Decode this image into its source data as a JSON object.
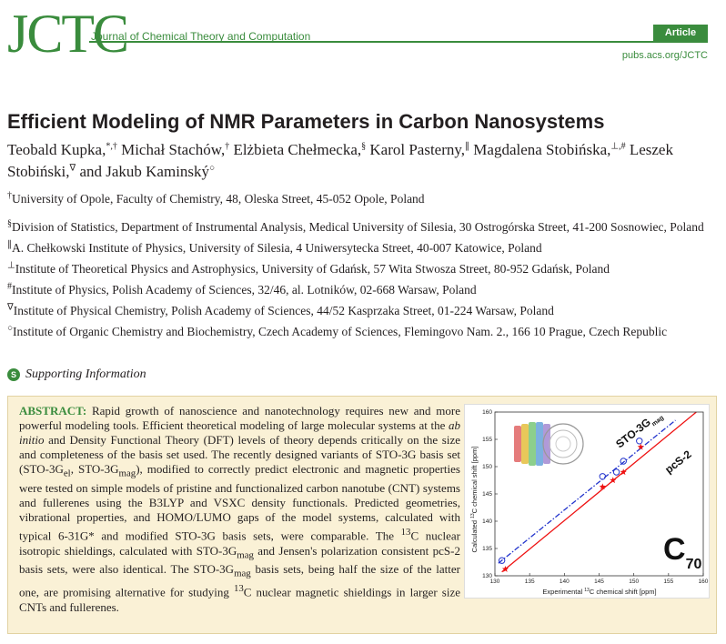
{
  "header": {
    "logo": "JCTC",
    "journal_name": "Journal of Chemical Theory and Computation",
    "badge": "Article",
    "url": "pubs.acs.org/JCTC"
  },
  "title": "Efficient Modeling of NMR Parameters in Carbon Nanosystems",
  "authors": [
    {
      "name": "Teobald Kupka,",
      "marks": "*,†"
    },
    {
      "name": "Michał Stachów,",
      "marks": "†"
    },
    {
      "name": "Elżbieta Chełmecka,",
      "marks": "§"
    },
    {
      "name": "Karol Pasterny,",
      "marks": "∥"
    },
    {
      "name": "Magdalena Stobińska,",
      "marks": "⊥,#"
    },
    {
      "name": "Leszek Stobiński,",
      "marks": "∇"
    },
    {
      "name": "and Jakub Kaminský",
      "marks": "○"
    }
  ],
  "affiliations": [
    {
      "mark": "†",
      "text": "University of Opole, Faculty of Chemistry, 48, Oleska Street, 45-052 Opole, Poland"
    },
    {
      "mark": "§",
      "text": "Division of Statistics, Department of Instrumental Analysis, Medical University of Silesia, 30 Ostrogórska Street, 41-200 Sosnowiec, Poland"
    },
    {
      "mark": "∥",
      "text": "A. Chełkowski Institute of Physics, University of Silesia, 4 Uniwersytecka Street, 40-007 Katowice, Poland"
    },
    {
      "mark": "⊥",
      "text": "Institute of Theoretical Physics and Astrophysics, University of Gdańsk, 57 Wita Stwosza Street, 80-952 Gdańsk, Poland"
    },
    {
      "mark": "#",
      "text": "Institute of Physics, Polish Academy of Sciences, 32/46, al. Lotników, 02-668 Warsaw, Poland"
    },
    {
      "mark": "∇",
      "text": "Institute of Physical Chemistry, Polish Academy of Sciences, 44/52 Kasprzaka Street, 01-224 Warsaw, Poland"
    },
    {
      "mark": "○",
      "text": "Institute of Organic Chemistry and Biochemistry, Czech Academy of Sciences, Flemingovo Nam. 2., 166 10 Prague, Czech Republic"
    }
  ],
  "supporting": {
    "icon": "S",
    "text": "Supporting Information"
  },
  "abstract": {
    "label": "ABSTRACT:",
    "p1": " Rapid growth of nanoscience and nanotechnology requires new and more powerful modeling tools. Efficient theoretical modeling of large molecular systems at the ",
    "italic": "ab initio",
    "p2": " and Density Functional Theory (DFT) levels of theory depends critically on the size and completeness of the basis set used. The recently designed variants of STO-3G basis set (STO-3G",
    "sub_el": "el",
    "p3": ", STO-3G",
    "sub_mag1": "mag",
    "p4": "), modified to correctly predict electronic and magnetic properties were tested on simple models of pristine and functionalized carbon nanotube (CNT) systems and fullerenes using the B3LYP and VSXC density functionals. Predicted geometries, vibrational properties, and HOMO/LUMO gaps of the model systems, calculated with typical 6-31G* and modified STO-3G basis sets, were comparable. The ",
    "sup_13_1": "13",
    "p5": "C nuclear isotropic shieldings, calculated with STO-3G",
    "sub_mag2": "mag",
    "p6": " and Jensen's polarization consistent pcS-2 basis sets, were also identical. The STO-3G",
    "sub_mag3": "mag",
    "p7": " basis sets, being half the size of the latter one, are promising alternative for studying ",
    "sup_13_2": "13",
    "p8": "C nuclear magnetic shieldings in larger size CNTs and fullerenes."
  },
  "chart_data": {
    "type": "scatter",
    "xlabel_pre": "Experimental ",
    "xlabel_sup": "13",
    "xlabel_post": "C chemical shift [ppm]",
    "ylabel_pre": "Calculated ",
    "ylabel_sup": "13",
    "ylabel_post": "C chemical shift [ppm]",
    "xlim": [
      130,
      160
    ],
    "ylim": [
      130,
      160
    ],
    "xticks": [
      "130",
      "135",
      "140",
      "145",
      "150",
      "155",
      "160"
    ],
    "yticks": [
      "130",
      "135",
      "140",
      "145",
      "150",
      "155",
      "160"
    ],
    "series": [
      {
        "name_main": "STO-3G",
        "name_sub": "mag",
        "color": "#2233cc",
        "marker": "open-circle",
        "line": "dash-dot",
        "points": [
          [
            131.0,
            132.8
          ],
          [
            145.5,
            148.2
          ],
          [
            147.5,
            149.0
          ],
          [
            148.5,
            151.0
          ],
          [
            150.8,
            154.7
          ]
        ],
        "fit": [
          [
            130.5,
            132.3
          ],
          [
            156.0,
            158.5
          ]
        ]
      },
      {
        "name_main": "pcS-2",
        "name_sub": "",
        "color": "#ee1111",
        "marker": "star",
        "line": "solid",
        "points": [
          [
            131.5,
            131.2
          ],
          [
            145.5,
            146.3
          ],
          [
            147.0,
            147.5
          ],
          [
            148.5,
            149.0
          ],
          [
            151.0,
            153.6
          ]
        ],
        "fit": [
          [
            131.0,
            130.7
          ],
          [
            159.0,
            160.0
          ]
        ]
      }
    ],
    "annotation_main": "C",
    "annotation_sub": "70"
  },
  "colors": {
    "accent": "#3a8c3d",
    "abstract_bg": "#faf1d6"
  }
}
